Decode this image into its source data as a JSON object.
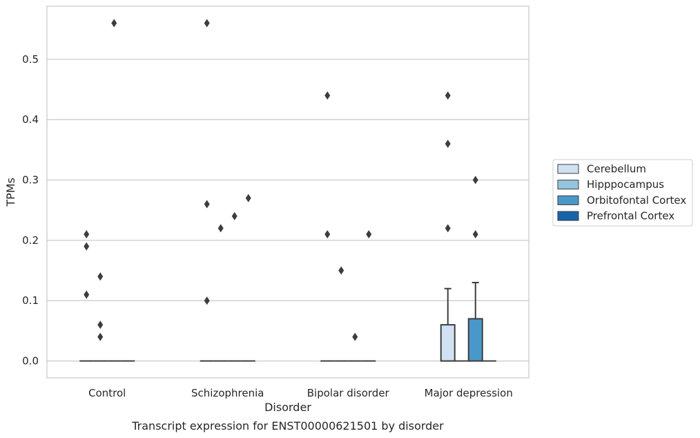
{
  "chart_data": {
    "type": "box",
    "xlabel": "Disorder",
    "ylabel": "TPMs",
    "caption": "Transcript expression for ENST00000621501 by disorder",
    "categories": [
      "Control",
      "Schizophrenia",
      "Bipolar disorder",
      "Major depression"
    ],
    "ylim": [
      -0.028,
      0.588
    ],
    "yticks": [
      0.0,
      0.1,
      0.2,
      0.3,
      0.4,
      0.5
    ],
    "ytick_labels": [
      "0.0",
      "0.1",
      "0.2",
      "0.3",
      "0.4",
      "0.5"
    ],
    "grid": true,
    "legend_position": "right",
    "series": [
      {
        "name": "Cerebellum",
        "color": "#d0e1f2",
        "boxes": [
          {
            "q1": 0,
            "median": 0,
            "q3": 0,
            "whisker_low": 0,
            "whisker_high": 0,
            "outliers": [
              0.21,
              0.19,
              0.11
            ]
          },
          {
            "q1": 0,
            "median": 0,
            "q3": 0,
            "whisker_low": 0,
            "whisker_high": 0,
            "outliers": [
              0.56,
              0.26,
              0.1
            ]
          },
          {
            "q1": 0,
            "median": 0,
            "q3": 0,
            "whisker_low": 0,
            "whisker_high": 0,
            "outliers": [
              0.44,
              0.21
            ]
          },
          {
            "q1": 0,
            "median": 0,
            "q3": 0.06,
            "whisker_low": 0,
            "whisker_high": 0.12,
            "outliers": [
              0.44,
              0.36,
              0.22
            ]
          }
        ]
      },
      {
        "name": "Hipppocampus",
        "color": "#94c4df",
        "boxes": [
          {
            "q1": 0,
            "median": 0,
            "q3": 0,
            "whisker_low": 0,
            "whisker_high": 0,
            "outliers": [
              0.14,
              0.06,
              0.04
            ]
          },
          {
            "q1": 0,
            "median": 0,
            "q3": 0,
            "whisker_low": 0,
            "whisker_high": 0,
            "outliers": [
              0.22
            ]
          },
          {
            "q1": 0,
            "median": 0,
            "q3": 0,
            "whisker_low": 0,
            "whisker_high": 0,
            "outliers": [
              0.15
            ]
          },
          {
            "q1": 0,
            "median": 0,
            "q3": 0,
            "whisker_low": 0,
            "whisker_high": 0,
            "outliers": []
          }
        ]
      },
      {
        "name": "Orbitofontal Cortex",
        "color": "#4a98c9",
        "boxes": [
          {
            "q1": 0,
            "median": 0,
            "q3": 0,
            "whisker_low": 0,
            "whisker_high": 0,
            "outliers": [
              0.56
            ]
          },
          {
            "q1": 0,
            "median": 0,
            "q3": 0,
            "whisker_low": 0,
            "whisker_high": 0,
            "outliers": [
              0.24
            ]
          },
          {
            "q1": 0,
            "median": 0,
            "q3": 0,
            "whisker_low": 0,
            "whisker_high": 0,
            "outliers": [
              0.04
            ]
          },
          {
            "q1": 0,
            "median": 0,
            "q3": 0.07,
            "whisker_low": 0,
            "whisker_high": 0.13,
            "outliers": [
              0.3,
              0.21
            ]
          }
        ]
      },
      {
        "name": "Prefrontal Cortex",
        "color": "#1764ab",
        "boxes": [
          {
            "q1": 0,
            "median": 0,
            "q3": 0,
            "whisker_low": 0,
            "whisker_high": 0,
            "outliers": []
          },
          {
            "q1": 0,
            "median": 0,
            "q3": 0,
            "whisker_low": 0,
            "whisker_high": 0,
            "outliers": [
              0.27
            ]
          },
          {
            "q1": 0,
            "median": 0,
            "q3": 0,
            "whisker_low": 0,
            "whisker_high": 0,
            "outliers": [
              0.21
            ]
          },
          {
            "q1": 0,
            "median": 0,
            "q3": 0,
            "whisker_low": 0,
            "whisker_high": 0,
            "outliers": []
          }
        ]
      }
    ]
  }
}
